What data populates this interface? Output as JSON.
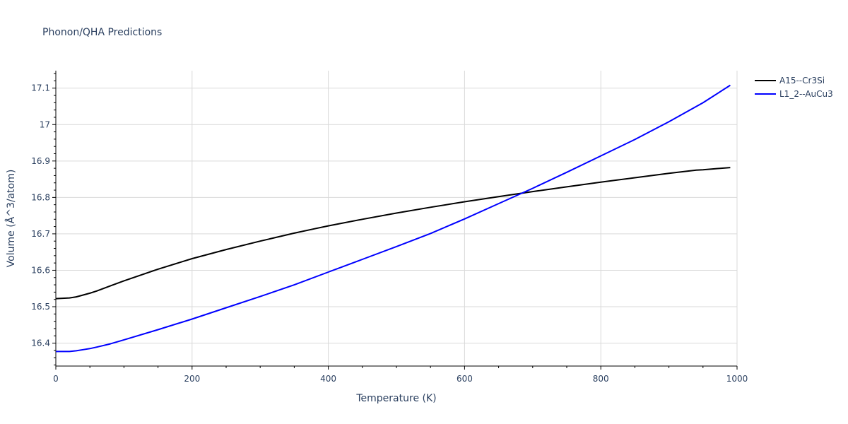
{
  "chart_data": {
    "type": "line",
    "title": "Phonon/QHA Predictions",
    "xlabel": "Temperature (K)",
    "ylabel": "Volume (Å^3/atom)",
    "xlim": [
      0,
      1000
    ],
    "ylim": [
      16.337,
      17.148
    ],
    "x_ticks": [
      0,
      200,
      400,
      600,
      800,
      1000
    ],
    "x_tick_labels": [
      "0",
      "200",
      "400",
      "600",
      "800",
      "1000"
    ],
    "y_ticks": [
      16.4,
      16.5,
      16.6,
      16.7,
      16.8,
      16.9,
      17.0,
      17.1
    ],
    "y_tick_labels": [
      "16.4",
      "16.5",
      "16.6",
      "16.7",
      "16.8",
      "16.9",
      "17",
      "17.1"
    ],
    "grid": true,
    "legend_position": "top-right",
    "series": [
      {
        "name": "A15--Cr3Si",
        "color": "#000000",
        "x": [
          0,
          10,
          20,
          30,
          40,
          50,
          60,
          80,
          100,
          150,
          200,
          250,
          300,
          350,
          380,
          400,
          450,
          500,
          550,
          600,
          650,
          700,
          750,
          800,
          850,
          900,
          940,
          950,
          970,
          990
        ],
        "y": [
          16.522,
          16.523,
          16.524,
          16.527,
          16.532,
          16.537,
          16.543,
          16.557,
          16.571,
          16.603,
          16.632,
          16.657,
          16.68,
          16.702,
          16.714,
          16.722,
          16.74,
          16.757,
          16.773,
          16.788,
          16.802,
          16.816,
          16.829,
          16.842,
          16.854,
          16.866,
          16.875,
          16.876,
          16.879,
          16.882
        ]
      },
      {
        "name": "L1_2--AuCu3",
        "color": "#0000ff",
        "x": [
          0,
          10,
          20,
          30,
          40,
          50,
          60,
          80,
          100,
          150,
          200,
          250,
          300,
          350,
          400,
          450,
          500,
          550,
          600,
          650,
          700,
          750,
          800,
          850,
          900,
          950,
          990
        ],
        "y": [
          16.377,
          16.377,
          16.377,
          16.379,
          16.382,
          16.385,
          16.389,
          16.398,
          16.409,
          16.437,
          16.466,
          16.497,
          16.528,
          16.56,
          16.595,
          16.63,
          16.665,
          16.701,
          16.741,
          16.783,
          16.825,
          16.869,
          16.914,
          16.959,
          17.008,
          17.06,
          17.108
        ]
      }
    ]
  }
}
